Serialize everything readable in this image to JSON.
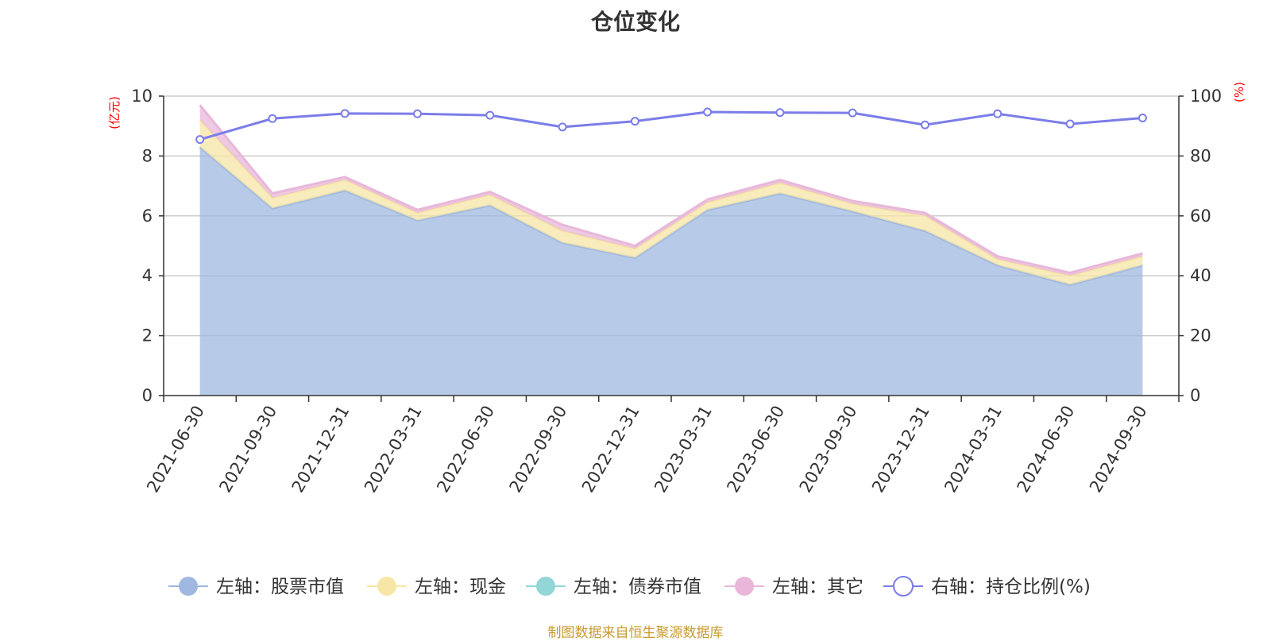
{
  "chart_data": {
    "type": "area",
    "title": "仓位变化",
    "categories": [
      "2021-06-30",
      "2021-09-30",
      "2021-12-31",
      "2022-03-31",
      "2022-06-30",
      "2022-09-30",
      "2022-12-31",
      "2023-03-31",
      "2023-06-30",
      "2023-09-30",
      "2023-12-31",
      "2024-03-31",
      "2024-06-30",
      "2024-09-30"
    ],
    "left_axis": {
      "unit_label": "(亿元)",
      "ylim": [
        0,
        10
      ],
      "ticks": [
        "0",
        "2",
        "4",
        "6",
        "8",
        "10"
      ]
    },
    "right_axis": {
      "unit_label": "(%)",
      "ylim": [
        0,
        100
      ],
      "ticks": [
        "0",
        "20",
        "40",
        "60",
        "80",
        "100"
      ]
    },
    "series": [
      {
        "name": "左轴：股票市值",
        "axis": "left",
        "type": "stacked-area",
        "color": "#9fb8e0",
        "values": [
          8.3,
          6.25,
          6.85,
          5.85,
          6.35,
          5.1,
          4.6,
          6.2,
          6.75,
          6.15,
          5.5,
          4.35,
          3.7,
          4.35
        ]
      },
      {
        "name": "左轴：现金",
        "axis": "left",
        "type": "stacked-area",
        "color": "#f7e6a6",
        "values": [
          0.9,
          0.35,
          0.35,
          0.25,
          0.35,
          0.4,
          0.3,
          0.25,
          0.35,
          0.25,
          0.5,
          0.2,
          0.3,
          0.3
        ]
      },
      {
        "name": "左轴：债券市值",
        "axis": "left",
        "type": "stacked-area",
        "color": "#93d6d6",
        "values": [
          0,
          0,
          0,
          0,
          0,
          0,
          0,
          0,
          0,
          0,
          0,
          0,
          0,
          0
        ]
      },
      {
        "name": "左轴：其它",
        "axis": "left",
        "type": "stacked-area",
        "color": "#e8b7d9",
        "values": [
          0.5,
          0.15,
          0.1,
          0.1,
          0.1,
          0.2,
          0.1,
          0.1,
          0.1,
          0.1,
          0.1,
          0.1,
          0.1,
          0.1
        ]
      },
      {
        "name": "右轴：持仓比例(%)",
        "axis": "right",
        "type": "line",
        "color": "#7b7de8",
        "values": [
          85.5,
          92.5,
          94.2,
          94.1,
          93.6,
          89.7,
          91.6,
          94.7,
          94.5,
          94.4,
          90.4,
          94.1,
          90.7,
          92.7
        ]
      }
    ],
    "grid": true,
    "legend_position": "bottom"
  },
  "source_note": "制图数据来自恒生聚源数据库"
}
